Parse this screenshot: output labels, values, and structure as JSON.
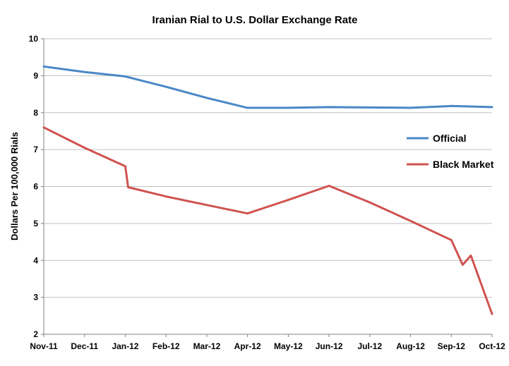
{
  "chart": {
    "title": "Iranian Rial to U.S. Dollar Exchange Rate",
    "ylabel": "Dollars Per 100,000 Rials"
  },
  "chart_data": {
    "type": "line",
    "title": "Iranian Rial to U.S. Dollar Exchange Rate",
    "xlabel": "",
    "ylabel": "Dollars Per 100,000 Rials",
    "ylim": [
      2,
      10
    ],
    "ytick_step": 1,
    "grid": "horizontal",
    "legend_position": "inside-right-middle",
    "categories": [
      "Nov-11",
      "Dec-11",
      "Jan-12",
      "Feb-12",
      "Mar-12",
      "Apr-12",
      "May-12",
      "Jun-12",
      "Jul-12",
      "Aug-12",
      "Sep-12",
      "Oct-12"
    ],
    "colors": {
      "official": "#4A87C6",
      "black_market": "#CF5350",
      "gridline": "#C0C0C0",
      "axis": "#808080"
    },
    "series": [
      {
        "name": "Official",
        "color": "#4A87C6",
        "points": [
          [
            0,
            9.25
          ],
          [
            1,
            9.1
          ],
          [
            2,
            8.98
          ],
          [
            3,
            8.7
          ],
          [
            4,
            8.4
          ],
          [
            5,
            8.13
          ],
          [
            6,
            8.13
          ],
          [
            7,
            8.15
          ],
          [
            8,
            8.14
          ],
          [
            9,
            8.13
          ],
          [
            10,
            8.18
          ],
          [
            11,
            8.15
          ]
        ]
      },
      {
        "name": "Black Market",
        "color": "#CF5350",
        "points": [
          [
            0,
            7.6
          ],
          [
            1,
            7.05
          ],
          [
            2,
            6.55
          ],
          [
            2.07,
            5.98
          ],
          [
            3,
            5.73
          ],
          [
            4,
            5.5
          ],
          [
            5,
            5.27
          ],
          [
            6,
            5.64
          ],
          [
            7,
            6.02
          ],
          [
            8,
            5.57
          ],
          [
            9,
            5.07
          ],
          [
            10,
            4.55
          ],
          [
            10.28,
            3.88
          ],
          [
            10.48,
            4.13
          ],
          [
            11,
            2.55
          ]
        ]
      }
    ]
  }
}
